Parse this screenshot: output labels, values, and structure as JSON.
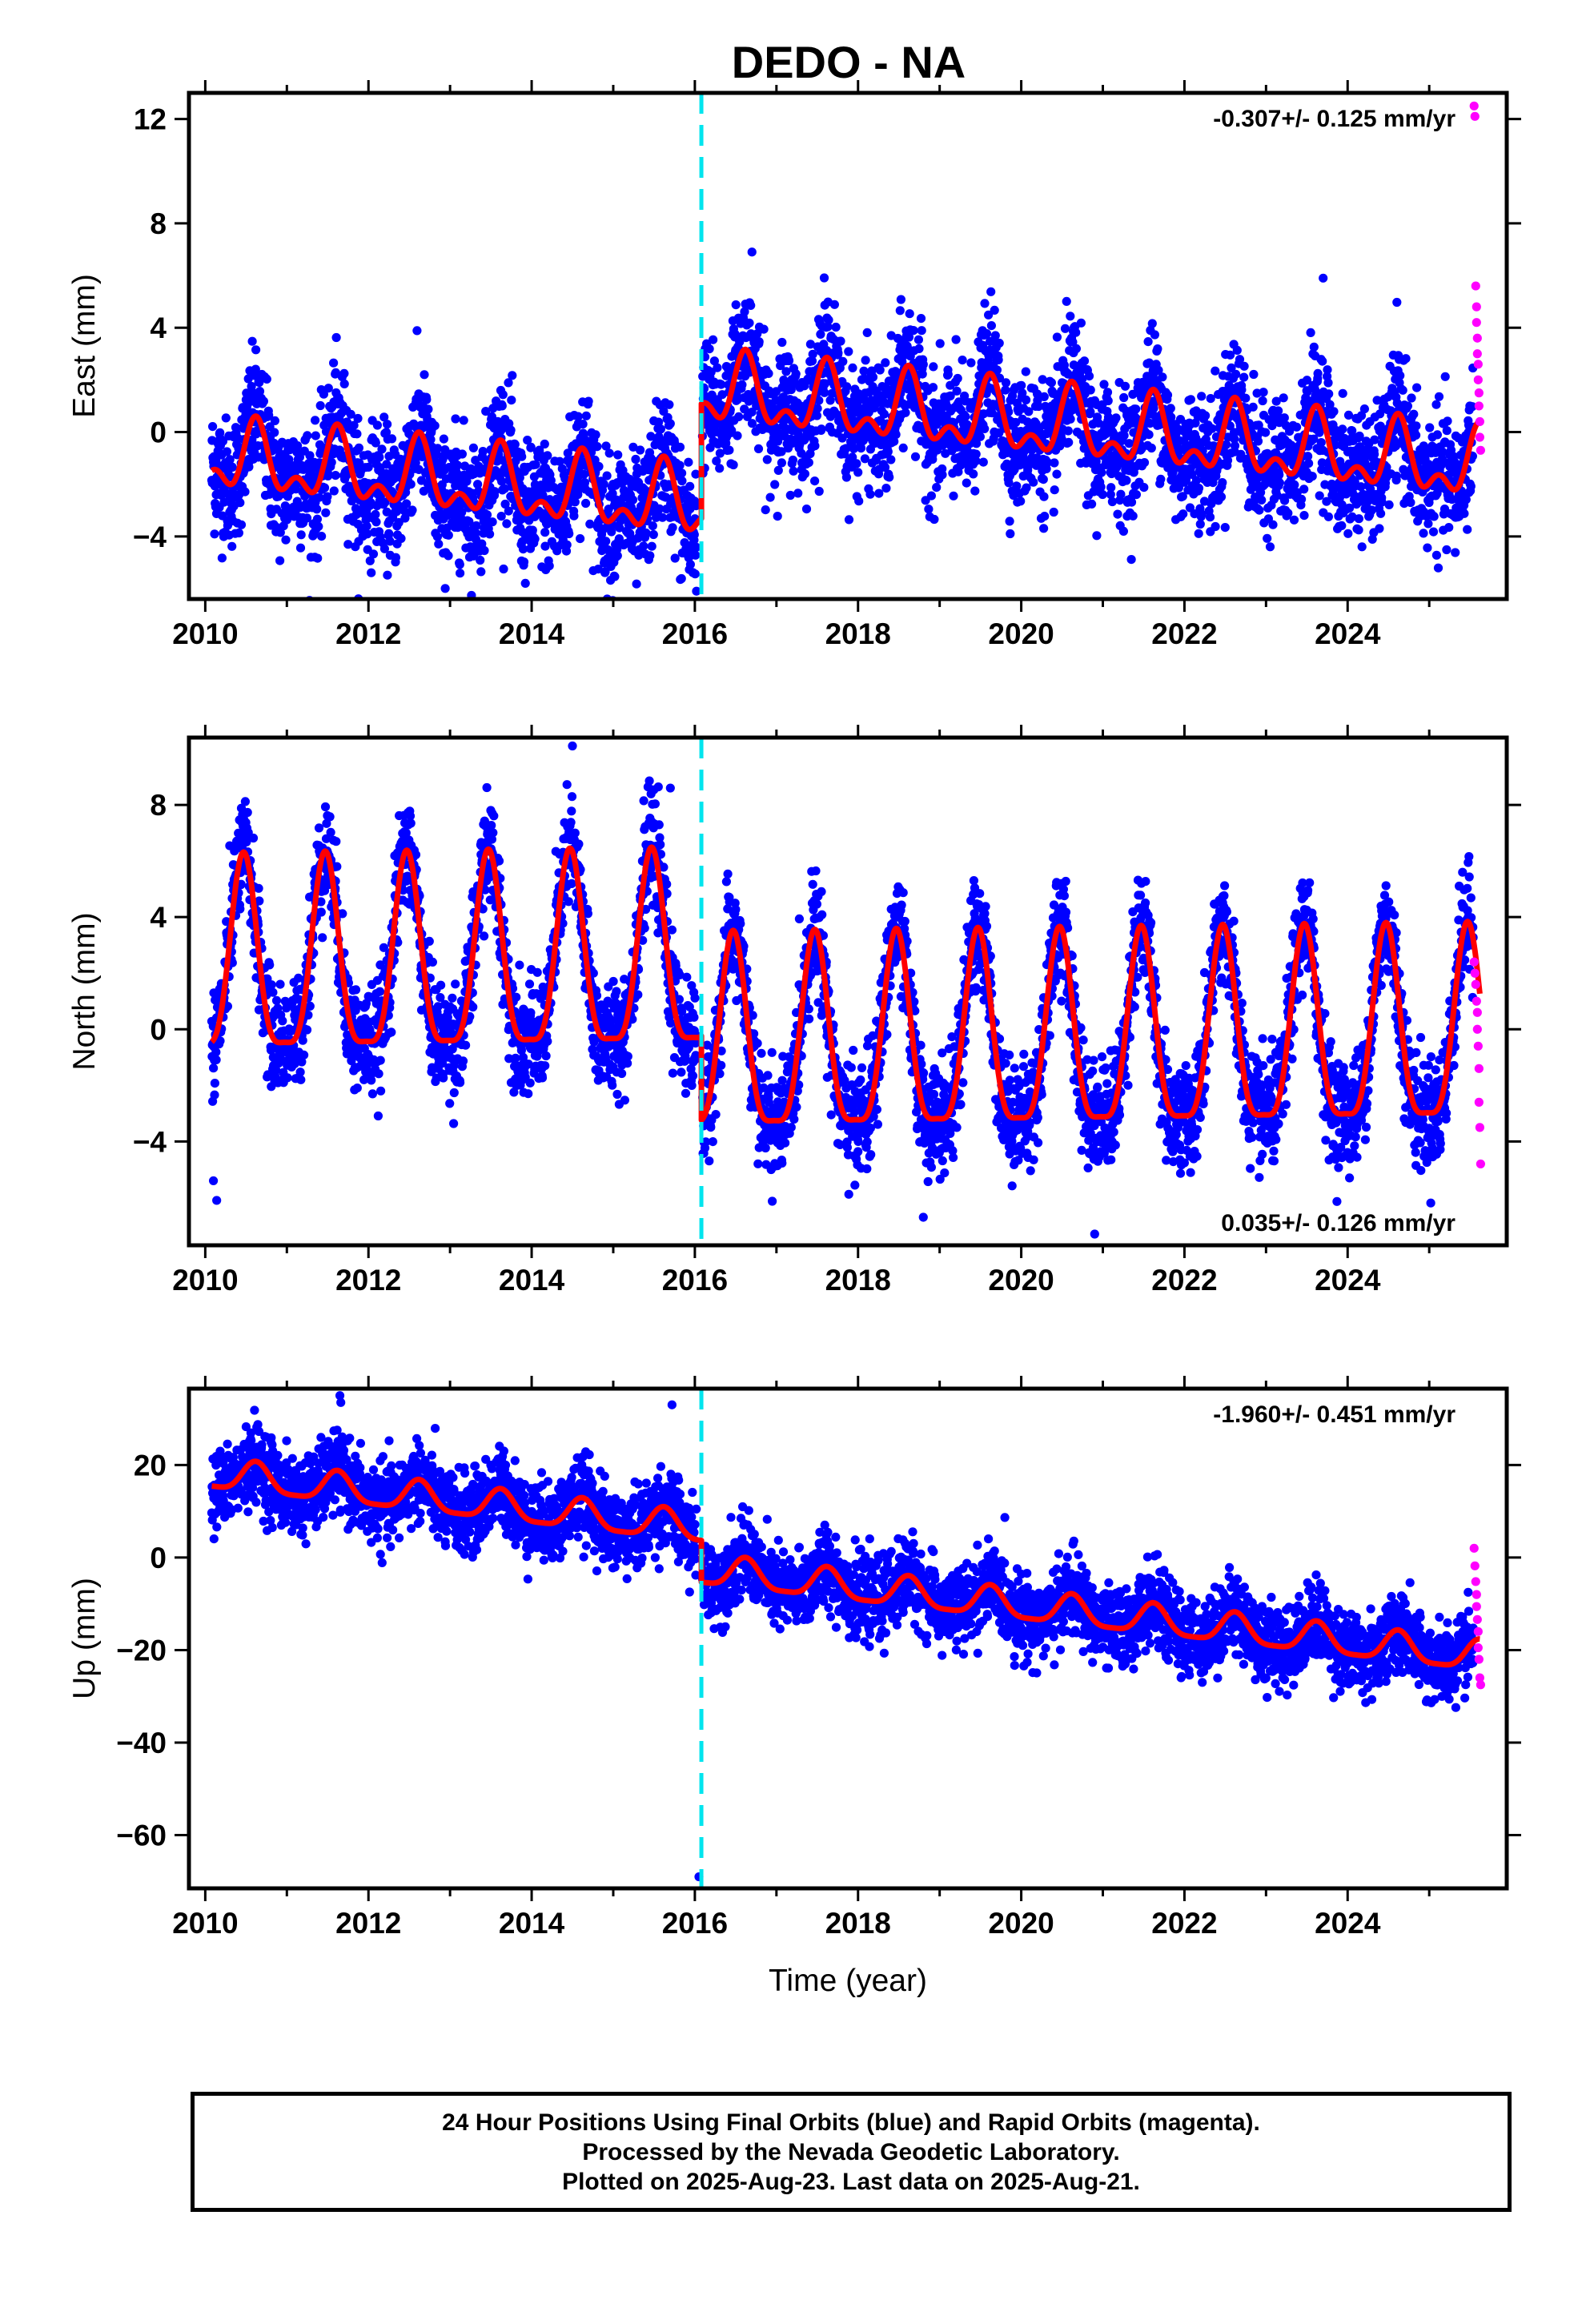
{
  "title": "DEDO - NA",
  "colors": {
    "final_points": "#0000ff",
    "rapid_points": "#ff00ff",
    "model_curve": "#ff0000",
    "event_line": "#00e5ee",
    "frame": "#000000"
  },
  "footer": {
    "line1": "24 Hour Positions Using Final Orbits (blue) and Rapid Orbits (magenta).",
    "line2": "Processed by the Nevada Geodetic Laboratory.",
    "line3": "Plotted on 2025-Aug-23. Last data on 2025-Aug-21."
  },
  "chart_data": [
    {
      "type": "scatter",
      "component": "east",
      "ylabel": "East (mm)",
      "xlabel": "",
      "xlim": [
        2009.8,
        2025.95
      ],
      "ylim": [
        -6.4,
        13.0
      ],
      "xticks": [
        2010,
        2012,
        2014,
        2016,
        2018,
        2020,
        2022,
        2024
      ],
      "yticks": [
        -4,
        0,
        4,
        8,
        12
      ],
      "rate_label": "-0.307+/- 0.125 mm/yr",
      "event_line_year": 2016.08,
      "model": {
        "offset": -1.0,
        "rate_mm_per_yr": -0.307,
        "jump_year": 2016.08,
        "jump_mm": 4.4,
        "annual_amp": 1.1,
        "annual_phase_year": 0.62,
        "semi_amp": 0.7,
        "semi_phase_year": 0.62
      },
      "scatter_std_mm": 1.2,
      "rapid_points": [
        {
          "x": 2025.55,
          "y": 12.5
        },
        {
          "x": 2025.56,
          "y": 12.1
        },
        {
          "x": 2025.57,
          "y": 5.6
        },
        {
          "x": 2025.58,
          "y": 4.8
        },
        {
          "x": 2025.58,
          "y": 4.2
        },
        {
          "x": 2025.59,
          "y": 3.6
        },
        {
          "x": 2025.59,
          "y": 3.0
        },
        {
          "x": 2025.6,
          "y": 2.6
        },
        {
          "x": 2025.6,
          "y": 2.0
        },
        {
          "x": 2025.61,
          "y": 1.5
        },
        {
          "x": 2025.61,
          "y": 1.0
        },
        {
          "x": 2025.62,
          "y": 0.4
        },
        {
          "x": 2025.62,
          "y": -0.2
        },
        {
          "x": 2025.63,
          "y": -0.7
        }
      ],
      "outliers": [
        {
          "x": 2016.02,
          "y": -6.1
        },
        {
          "x": 2016.7,
          "y": 6.9
        },
        {
          "x": 2023.7,
          "y": 5.9
        }
      ]
    },
    {
      "type": "scatter",
      "component": "north",
      "ylabel": "North (mm)",
      "xlabel": "",
      "xlim": [
        2009.8,
        2025.95
      ],
      "ylim": [
        -7.7,
        10.4
      ],
      "xticks": [
        2010,
        2012,
        2014,
        2016,
        2018,
        2020,
        2022,
        2024
      ],
      "yticks": [
        -4,
        0,
        4,
        8
      ],
      "rate_label": "0.035+/- 0.126 mm/yr",
      "event_line_year": 2016.08,
      "model": {
        "offset": 2.0,
        "rate_mm_per_yr": 0.035,
        "jump_year": 2016.08,
        "jump_mm": -3.0,
        "annual_amp": 3.4,
        "annual_phase_year": 0.47,
        "semi_amp": 0.9,
        "semi_phase_year": 0.47
      },
      "scatter_std_mm": 0.95,
      "rapid_points": [
        {
          "x": 2025.55,
          "y": 2.4
        },
        {
          "x": 2025.56,
          "y": 2.0
        },
        {
          "x": 2025.57,
          "y": 1.6
        },
        {
          "x": 2025.58,
          "y": 1.0
        },
        {
          "x": 2025.59,
          "y": 0.6
        },
        {
          "x": 2025.59,
          "y": 0.0
        },
        {
          "x": 2025.6,
          "y": -0.6
        },
        {
          "x": 2025.61,
          "y": -1.4
        },
        {
          "x": 2025.61,
          "y": -2.6
        },
        {
          "x": 2025.62,
          "y": -3.5
        },
        {
          "x": 2025.63,
          "y": -4.8
        }
      ],
      "outliers": [
        {
          "x": 2010.1,
          "y": -5.4
        },
        {
          "x": 2010.14,
          "y": -6.1
        },
        {
          "x": 2014.5,
          "y": 10.1
        },
        {
          "x": 2015.7,
          "y": 8.6
        },
        {
          "x": 2018.8,
          "y": -6.7
        },
        {
          "x": 2020.9,
          "y": -7.3
        }
      ]
    },
    {
      "type": "scatter",
      "component": "up",
      "ylabel": "Up (mm)",
      "xlabel": "Time (year)",
      "xlim": [
        2009.8,
        2025.95
      ],
      "ylim": [
        -71.5,
        36.5
      ],
      "xticks": [
        2010,
        2012,
        2014,
        2016,
        2018,
        2020,
        2022,
        2024
      ],
      "yticks": [
        -60,
        -40,
        -20,
        0,
        20
      ],
      "rate_label": "-1.960+/- 0.451 mm/yr",
      "event_line_year": 2016.08,
      "model": {
        "offset": 18.0,
        "rate_mm_per_yr": -1.96,
        "jump_year": 2016.08,
        "jump_mm": -9.0,
        "annual_amp": 3.2,
        "annual_phase_year": 0.62,
        "semi_amp": 0.8,
        "semi_phase_year": 0.62
      },
      "scatter_std_mm": 4.2,
      "rapid_points": [
        {
          "x": 2025.55,
          "y": 2.0
        },
        {
          "x": 2025.56,
          "y": -1.8
        },
        {
          "x": 2025.57,
          "y": -5.2
        },
        {
          "x": 2025.58,
          "y": -8.0
        },
        {
          "x": 2025.58,
          "y": -10.6
        },
        {
          "x": 2025.59,
          "y": -13.4
        },
        {
          "x": 2025.6,
          "y": -16.0
        },
        {
          "x": 2025.6,
          "y": -19.5
        },
        {
          "x": 2025.61,
          "y": -22.0
        },
        {
          "x": 2025.62,
          "y": -26.0
        },
        {
          "x": 2025.63,
          "y": -27.5
        }
      ],
      "outliers": [
        {
          "x": 2015.72,
          "y": 33.0
        },
        {
          "x": 2016.05,
          "y": -69.0
        },
        {
          "x": 2011.65,
          "y": 35.0
        }
      ]
    }
  ]
}
